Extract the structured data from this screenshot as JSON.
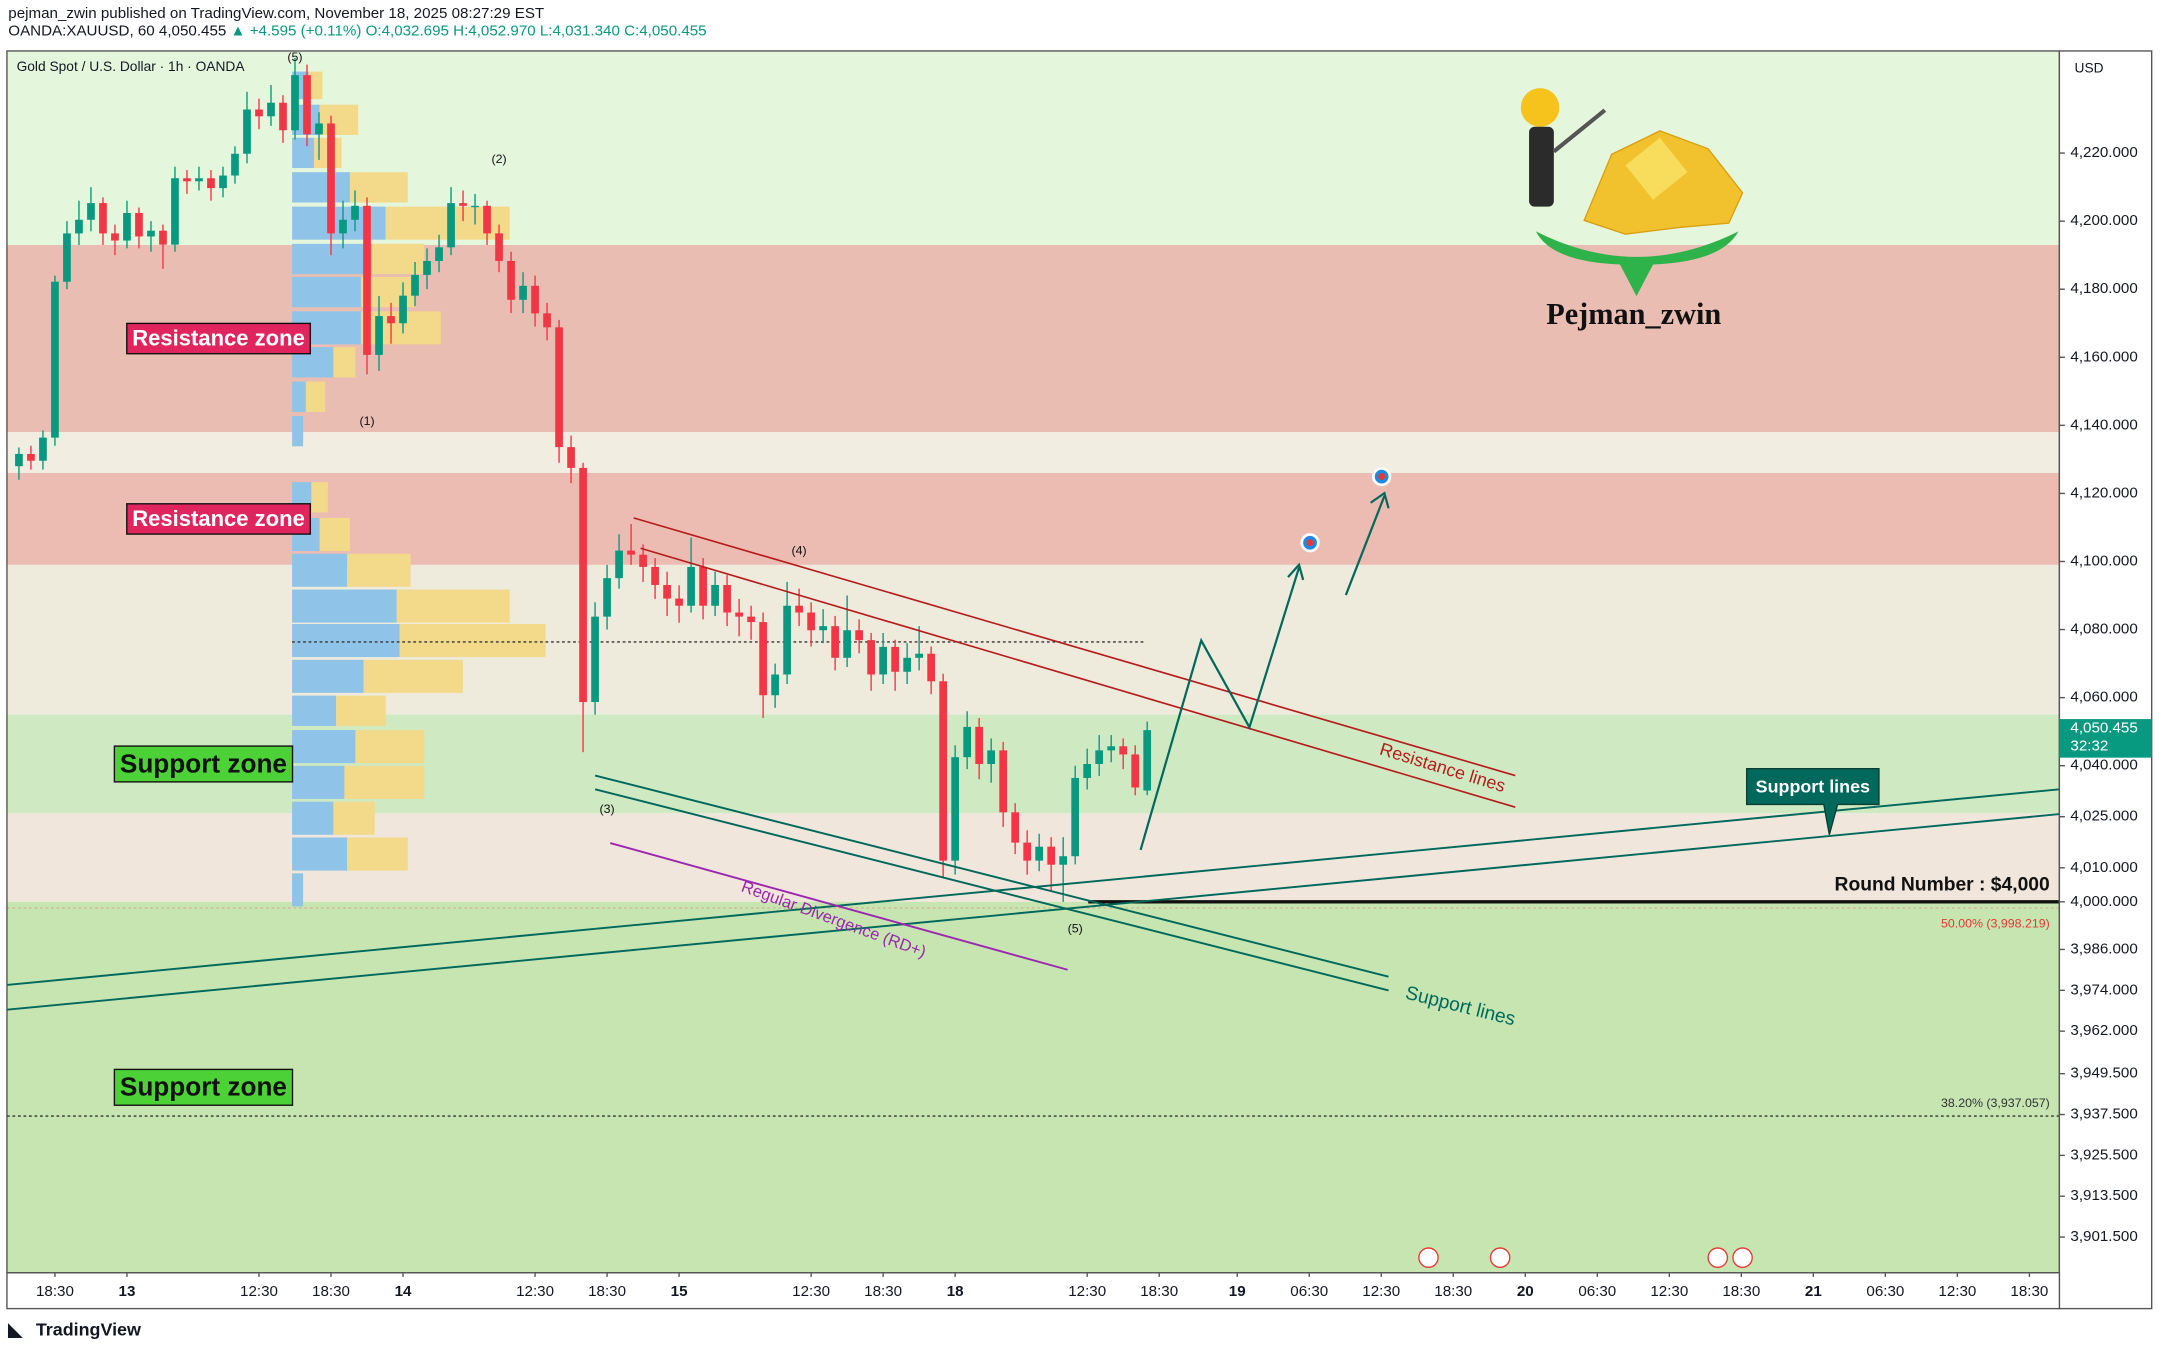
{
  "header": {
    "publisher": "pejman_zwin published on TradingView.com, November 18, 2025 08:27:29 EST",
    "symbol": "OANDA:XAUUSD, 60",
    "last": "4,050.455",
    "change": "▲ +4.595 (+0.11%)",
    "open": "O:4,032.695",
    "high": "H:4,052.970",
    "low": "L:4,031.340",
    "close": "C:4,050.455"
  },
  "chart_data": {
    "type": "candlestick",
    "title": "Gold Spot / U.S. Dollar · 1h · OANDA",
    "currency": "USD",
    "up_color": "#089981",
    "down_color": "#f23645",
    "x": [
      -3,
      -2,
      -1,
      0,
      1,
      2,
      3,
      4,
      5,
      6,
      7,
      8,
      9,
      10,
      11,
      12,
      13,
      14,
      15,
      16,
      17,
      18,
      19,
      20,
      21,
      22,
      23,
      24,
      25,
      26,
      27,
      28,
      29,
      30,
      31,
      32,
      33,
      34,
      35,
      36,
      37,
      38,
      39,
      40,
      41,
      42,
      43,
      44,
      45,
      46,
      47,
      48,
      49,
      50,
      51,
      52,
      53,
      54,
      55,
      56,
      57,
      58,
      59,
      60,
      61,
      62,
      63,
      64,
      65,
      66,
      67,
      68,
      69,
      70,
      71,
      72,
      73,
      74,
      75,
      76,
      77,
      78,
      79,
      80,
      81,
      82,
      83,
      84,
      85,
      86,
      87,
      88,
      89,
      90,
      91
    ],
    "open": [
      4128,
      4131.6,
      4129.6,
      4136.4,
      4182.2,
      4196.4,
      4200.4,
      4205.3,
      4196.4,
      4194.3,
      4202.4,
      4195.5,
      4197.2,
      4193.1,
      4212.6,
      4211.7,
      4212.6,
      4209.7,
      4213.4,
      4219.8,
      4232.8,
      4230.8,
      4234.8,
      4226.7,
      4242.9,
      4225.5,
      4228.7,
      4196.4,
      4200.4,
      4204.5,
      4160.7,
      4172.1,
      4170,
      4178.1,
      4184.2,
      4188.3,
      4192.3,
      4205.3,
      4204.5,
      4204.5,
      4196.4,
      4188.3,
      4176.9,
      4181,
      4172.9,
      4168.8,
      4133.6,
      4127.5,
      4058.7,
      4083.8,
      4095.1,
      4103.2,
      4102,
      4098.4,
      4093.1,
      4089.1,
      4087,
      4098.4,
      4087,
      4093.1,
      4085,
      4083.8,
      4082.2,
      4060.7,
      4066.8,
      4087,
      4085,
      4079.8,
      4081,
      4071.7,
      4079.8,
      4076.9,
      4066.8,
      4074.9,
      4067.6,
      4071.7,
      4072.9,
      4064.8,
      4012.1,
      4042.5,
      4051.4,
      4040.5,
      4044.5,
      4026.3,
      4017.4,
      4012.1,
      4016.2,
      4010.9,
      4013.4,
      4036.4,
      4040.5,
      4044.5,
      4045.7,
      4043.3,
      4032.695
    ],
    "high": [
      4133.5,
      4134,
      4138.5,
      4184,
      4200,
      4206,
      4210,
      4207,
      4199,
      4206,
      4204,
      4200,
      4199,
      4216,
      4215,
      4216,
      4215,
      4216,
      4222,
      4238,
      4236,
      4240,
      4237,
      4248,
      4246,
      4232,
      4231,
      4206,
      4209,
      4207,
      4178,
      4176,
      4182,
      4188,
      4192,
      4196,
      4210,
      4209,
      4208,
      4206,
      4199,
      4191,
      4185,
      4184,
      4176,
      4171,
      4137,
      4129,
      4088,
      4099,
      4108,
      4111,
      4105,
      4101,
      4097,
      4093,
      4107,
      4101,
      4097,
      4096,
      4089,
      4087,
      4085,
      4070,
      4094,
      4092,
      4088,
      4086,
      4084,
      4090,
      4083,
      4079,
      4079,
      4077,
      4076,
      4081,
      4075,
      4067,
      4046,
      4056,
      4054,
      4048,
      4047,
      4029,
      4021,
      4020,
      4019,
      4019,
      4040,
      4045,
      4049,
      4049,
      4048,
      4046,
      4052.97
    ],
    "low": [
      4124,
      4127,
      4127,
      4134,
      4180,
      4193,
      4197,
      4193,
      4190,
      4192,
      4192,
      4191,
      4186,
      4191,
      4208,
      4209,
      4206,
      4207,
      4211,
      4217,
      4227,
      4228,
      4223,
      4224,
      4222,
      4218,
      4190,
      4192,
      4197,
      4155,
      4156,
      4164,
      4167,
      4175,
      4180,
      4185,
      4190,
      4200,
      4199,
      4193,
      4185,
      4173,
      4173,
      4169,
      4165,
      4129,
      4123,
      4044,
      4055,
      4080,
      4092,
      4099,
      4094,
      4089,
      4084,
      4082,
      4085,
      4083,
      4084,
      4081,
      4078,
      4077,
      4054,
      4057,
      4064,
      4081,
      4075,
      4076,
      4068,
      4069,
      4073,
      4062,
      4064,
      4062,
      4064,
      4068,
      4061,
      4007,
      4008,
      4039,
      4036,
      4035,
      4022,
      4014,
      4008,
      4009,
      4003,
      4000,
      4011,
      4033,
      4037,
      4041,
      4039,
      4031.3,
      4031.34
    ],
    "close": [
      4131.6,
      4129.6,
      4136.4,
      4182.2,
      4196.4,
      4200.4,
      4205.3,
      4196.4,
      4194.3,
      4202.4,
      4195.5,
      4197.2,
      4193.1,
      4212.6,
      4211.7,
      4212.6,
      4209.7,
      4213.4,
      4219.8,
      4232.8,
      4230.8,
      4234.8,
      4226.7,
      4242.9,
      4225.5,
      4228.7,
      4196.4,
      4200.4,
      4204.5,
      4160.7,
      4172.1,
      4170,
      4178.1,
      4184.2,
      4188.3,
      4192.3,
      4205.3,
      4204.5,
      4204.5,
      4196.4,
      4188.3,
      4176.9,
      4181,
      4172.9,
      4168.8,
      4133.6,
      4127.5,
      4058.7,
      4083.8,
      4095.1,
      4103.2,
      4102,
      4098.4,
      4093.1,
      4089.1,
      4087,
      4098.4,
      4087,
      4093.1,
      4085,
      4083.8,
      4082.2,
      4060.7,
      4066.8,
      4087,
      4085,
      4079.8,
      4081,
      4071.7,
      4079.8,
      4076.9,
      4066.8,
      4074.9,
      4067.6,
      4071.7,
      4072.9,
      4064.8,
      4012.1,
      4042.5,
      4051.4,
      4040.5,
      4044.5,
      4026.3,
      4017.4,
      4012.1,
      4016.2,
      4010.9,
      4013.4,
      4036.4,
      4040.5,
      4044.5,
      4045.7,
      4043.3,
      4033.6,
      4050.455
    ],
    "last_price": {
      "value": 4050.455,
      "label": "4,050.455"
    },
    "countdown": "32:32",
    "xlim": [
      -4,
      167
    ],
    "xticks": [
      {
        "value": 0,
        "label": "18:30"
      },
      {
        "value": 6,
        "label": "13"
      },
      {
        "value": 17,
        "label": "12:30"
      },
      {
        "value": 23,
        "label": "18:30"
      },
      {
        "value": 29,
        "label": "14"
      },
      {
        "value": 40,
        "label": "12:30"
      },
      {
        "value": 46,
        "label": "18:30"
      },
      {
        "value": 52,
        "label": "15"
      },
      {
        "value": 63,
        "label": "12:30"
      },
      {
        "value": 69,
        "label": "18:30"
      },
      {
        "value": 75,
        "label": "18"
      },
      {
        "value": 86,
        "label": "12:30"
      },
      {
        "value": 92,
        "label": "18:30"
      },
      {
        "value": 98.5,
        "label": "19"
      },
      {
        "value": 104.5,
        "label": "06:30"
      },
      {
        "value": 110.5,
        "label": "12:30"
      },
      {
        "value": 116.5,
        "label": "18:30"
      },
      {
        "value": 122.5,
        "label": "20"
      },
      {
        "value": 128.5,
        "label": "06:30"
      },
      {
        "value": 134.5,
        "label": "12:30"
      },
      {
        "value": 140.5,
        "label": "18:30"
      },
      {
        "value": 146.5,
        "label": "21"
      },
      {
        "value": 152.5,
        "label": "06:30"
      },
      {
        "value": 158.5,
        "label": "12:30"
      },
      {
        "value": 164.5,
        "label": "18:30"
      }
    ],
    "ylim": [
      3891,
      4250
    ],
    "yticks": [
      {
        "value": 4220,
        "label": "4,220.000"
      },
      {
        "value": 4200,
        "label": "4,200.000"
      },
      {
        "value": 4180,
        "label": "4,180.000"
      },
      {
        "value": 4160,
        "label": "4,160.000"
      },
      {
        "value": 4140,
        "label": "4,140.000"
      },
      {
        "value": 4120,
        "label": "4,120.000"
      },
      {
        "value": 4100,
        "label": "4,100.000"
      },
      {
        "value": 4080,
        "label": "4,080.000"
      },
      {
        "value": 4060,
        "label": "4,060.000"
      },
      {
        "value": 4040,
        "label": "4,040.000"
      },
      {
        "value": 4025,
        "label": "4,025.000"
      },
      {
        "value": 4010,
        "label": "4,010.000"
      },
      {
        "value": 4000,
        "label": "4,000.000"
      },
      {
        "value": 3986,
        "label": "3,986.000"
      },
      {
        "value": 3974,
        "label": "3,974.000"
      },
      {
        "value": 3962,
        "label": "3,962.000"
      },
      {
        "value": 3949.5,
        "label": "3,949.500"
      },
      {
        "value": 3937.5,
        "label": "3,937.500"
      },
      {
        "value": 3925.5,
        "label": "3,925.500"
      },
      {
        "value": 3913.5,
        "label": "3,913.500"
      },
      {
        "value": 3901.5,
        "label": "3,901.500"
      }
    ],
    "zones": [
      {
        "from": 4193,
        "to": 4250,
        "color": "#e4f7dd"
      },
      {
        "label": "Resistance zone",
        "from": 4138,
        "to": 4193,
        "color": "#e9bdb1"
      },
      {
        "from": 4126,
        "to": 4138,
        "color": "#f1ede1"
      },
      {
        "label": "Resistance zone",
        "from": 4099,
        "to": 4126,
        "color": "#ecbcb3"
      },
      {
        "from": 4055,
        "to": 4099,
        "color": "#eeeadc"
      },
      {
        "label": "Support zone",
        "from": 4026,
        "to": 4055,
        "color": "#cfe9c2"
      },
      {
        "from": 4000,
        "to": 4026,
        "color": "#f0e6dc"
      },
      {
        "label": "Support zone",
        "from": 3891,
        "to": 4000,
        "color": "#c6e5b1"
      }
    ],
    "levels": [
      {
        "value": 4000,
        "label": "Round Number : $4,000"
      },
      {
        "value": 3998.219,
        "label": "50.00% (3,998.219)"
      },
      {
        "value": 3937.057,
        "label": "38.20% (3,937.057)"
      }
    ],
    "annotations": {
      "resistance_lines": "Resistance lines",
      "support_lines": "Support lines",
      "support_callout": "Support lines",
      "divergence": "Regular Divergence (RD+)",
      "author": "Pejman_zwin"
    },
    "waves": [
      {
        "label": "(5)",
        "x": 20,
        "value": 4248
      },
      {
        "label": "(2)",
        "x": 37,
        "value": 4218
      },
      {
        "label": "(1)",
        "x": 26,
        "value": 4141
      },
      {
        "label": "(4)",
        "x": 62,
        "value": 4103
      },
      {
        "label": "(3)",
        "x": 46,
        "value": 4027
      },
      {
        "label": "(5)",
        "x": 85,
        "value": 3992
      }
    ],
    "brand": "TradingView"
  }
}
